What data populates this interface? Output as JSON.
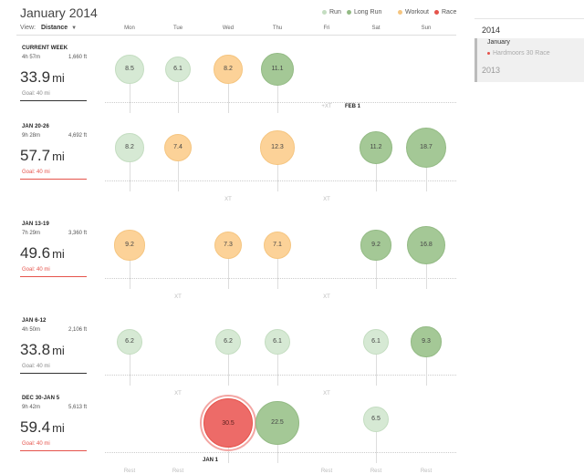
{
  "header": {
    "title": "January 2014",
    "view_label": "View:",
    "view_value": "Distance"
  },
  "legend": [
    {
      "label": "Run",
      "color": "#c4ddc1"
    },
    {
      "label": "Long Run",
      "color": "#93ba84"
    },
    {
      "label": "Workout",
      "color": "#f5c580"
    },
    {
      "label": "Race",
      "color": "#e5534b"
    }
  ],
  "days": [
    "Mon",
    "Tue",
    "Wed",
    "Thu",
    "Fri",
    "Sat",
    "Sun"
  ],
  "weeks": [
    {
      "label": "CURRENT WEEK",
      "time": "4h 57m",
      "elev": "1,660 ft",
      "distance": "33.9",
      "unit": "mi",
      "goal": "Goal: 40 mi",
      "goal_red": false,
      "runs": [
        {
          "day": 0,
          "value": "8.5",
          "type": "run"
        },
        {
          "day": 1,
          "value": "6.1",
          "type": "run"
        },
        {
          "day": 2,
          "value": "8.2",
          "type": "workout"
        },
        {
          "day": 3,
          "value": "11.1",
          "type": "long"
        }
      ],
      "notes": [
        {
          "day": 4,
          "text": "+XT"
        }
      ],
      "marker": {
        "day": 5,
        "text": "FEB 1"
      }
    },
    {
      "label": "JAN 20-26",
      "time": "9h 28m",
      "elev": "4,692 ft",
      "distance": "57.7",
      "unit": "mi",
      "goal": "Goal: 40 mi",
      "goal_red": true,
      "runs": [
        {
          "day": 0,
          "value": "8.2",
          "type": "run"
        },
        {
          "day": 1,
          "value": "7.4",
          "type": "workout"
        },
        {
          "day": 3,
          "value": "12.3",
          "type": "workout"
        },
        {
          "day": 5,
          "value": "11.2",
          "type": "long"
        },
        {
          "day": 6,
          "value": "18.7",
          "type": "long"
        }
      ],
      "notes": [
        {
          "day": 2,
          "text": "XT"
        },
        {
          "day": 4,
          "text": "XT"
        }
      ]
    },
    {
      "label": "JAN 13-19",
      "time": "7h 29m",
      "elev": "3,360 ft",
      "distance": "49.6",
      "unit": "mi",
      "goal": "Goal: 40 mi",
      "goal_red": true,
      "runs": [
        {
          "day": 0,
          "value": "9.2",
          "type": "workout"
        },
        {
          "day": 2,
          "value": "7.3",
          "type": "workout"
        },
        {
          "day": 3,
          "value": "7.1",
          "type": "workout"
        },
        {
          "day": 5,
          "value": "9.2",
          "type": "long"
        },
        {
          "day": 6,
          "value": "16.8",
          "type": "long"
        }
      ],
      "notes": [
        {
          "day": 1,
          "text": "XT"
        },
        {
          "day": 4,
          "text": "XT"
        }
      ]
    },
    {
      "label": "JAN 6-12",
      "time": "4h 50m",
      "elev": "2,106 ft",
      "distance": "33.8",
      "unit": "mi",
      "goal": "Goal: 40 mi",
      "goal_red": false,
      "runs": [
        {
          "day": 0,
          "value": "6.2",
          "type": "run"
        },
        {
          "day": 2,
          "value": "6.2",
          "type": "run"
        },
        {
          "day": 3,
          "value": "6.1",
          "type": "run"
        },
        {
          "day": 5,
          "value": "6.1",
          "type": "run"
        },
        {
          "day": 6,
          "value": "9.3",
          "type": "long"
        }
      ],
      "notes": [
        {
          "day": 1,
          "text": "XT"
        },
        {
          "day": 4,
          "text": "XT"
        }
      ]
    },
    {
      "label": "DEC 30-JAN 5",
      "time": "9h 42m",
      "elev": "5,613 ft",
      "distance": "59.4",
      "unit": "mi",
      "goal": "Goal: 40 mi",
      "goal_red": true,
      "runs": [
        {
          "day": 2,
          "value": "30.5",
          "type": "race"
        },
        {
          "day": 3,
          "value": "22.5",
          "type": "long"
        },
        {
          "day": 5,
          "value": "6.5",
          "type": "run"
        }
      ],
      "notes": [
        {
          "day": 0,
          "text": "Rest"
        },
        {
          "day": 1,
          "text": "Rest"
        },
        {
          "day": 4,
          "text": "Rest"
        },
        {
          "day": 5,
          "text": "Rest"
        },
        {
          "day": 6,
          "text": "Rest"
        }
      ],
      "marker": {
        "day": 2,
        "text": "JAN 1"
      }
    }
  ],
  "sidebar": {
    "year_current": "2014",
    "month": "January",
    "race": "Hardmoors 30 Race",
    "year_prev": "2013"
  }
}
